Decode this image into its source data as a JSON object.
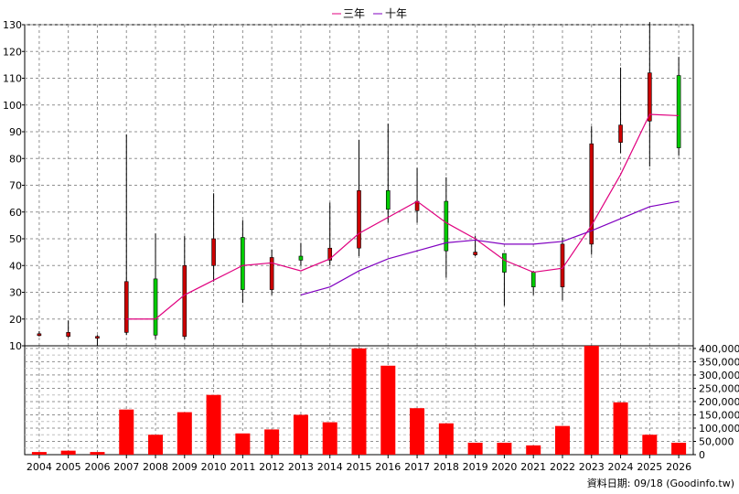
{
  "legend": [
    {
      "label": "三年",
      "color": "#e0007f"
    },
    {
      "label": "十年",
      "color": "#8000c0"
    }
  ],
  "source_text": "資料日期: 09/18  (Goodinfo.tw)",
  "chart_data": [
    {
      "type": "candlestick",
      "title": "",
      "categories": [
        "2004",
        "2005",
        "2006",
        "2007",
        "2008",
        "2009",
        "2010",
        "2011",
        "2012",
        "2013",
        "2014",
        "2015",
        "2016",
        "2017",
        "2018",
        "2019",
        "2020",
        "2021",
        "2022",
        "2023",
        "2024",
        "2025",
        "2026"
      ],
      "ylim": [
        10,
        130
      ],
      "yticks": [
        10,
        20,
        30,
        40,
        50,
        60,
        70,
        80,
        90,
        100,
        110,
        120,
        130
      ],
      "grid": true,
      "legend_position": "top-center",
      "up_color": "#00cc00",
      "down_color": "#cc0000",
      "ohlc": [
        {
          "open": 14.5,
          "high": 15.5,
          "low": 13.5,
          "close": 14.0
        },
        {
          "open": 15.0,
          "high": 19.5,
          "low": 13.0,
          "close": 13.5
        },
        {
          "open": 13.5,
          "high": 14.0,
          "low": 10.0,
          "close": 13.0
        },
        {
          "open": 34.0,
          "high": 89.0,
          "low": 14.0,
          "close": 15.0
        },
        {
          "open": 14.0,
          "high": 52.0,
          "low": 12.5,
          "close": 35.0
        },
        {
          "open": 40.0,
          "high": 51.0,
          "low": 12.5,
          "close": 13.5
        },
        {
          "open": 50.0,
          "high": 67.0,
          "low": 34.0,
          "close": 40.0
        },
        {
          "open": 31.0,
          "high": 57.0,
          "low": 26.0,
          "close": 50.5
        },
        {
          "open": 43.0,
          "high": 46.0,
          "low": 29.0,
          "close": 31.0
        },
        {
          "open": 42.0,
          "high": 48.5,
          "low": 40.0,
          "close": 43.5
        },
        {
          "open": 46.5,
          "high": 63.5,
          "low": 40.0,
          "close": 42.0
        },
        {
          "open": 68.0,
          "high": 87.0,
          "low": 43.5,
          "close": 46.5
        },
        {
          "open": 61.0,
          "high": 93.0,
          "low": 56.0,
          "close": 68.0
        },
        {
          "open": 64.0,
          "high": 76.5,
          "low": 56.0,
          "close": 60.5
        },
        {
          "open": 45.5,
          "high": 73.0,
          "low": 35.5,
          "close": 64.0
        },
        {
          "open": 45.0,
          "high": 51.0,
          "low": 43.5,
          "close": 44.0
        },
        {
          "open": 37.5,
          "high": 44.5,
          "low": 25.0,
          "close": 44.5
        },
        {
          "open": 32.0,
          "high": 38.0,
          "low": 29.0,
          "close": 37.5
        },
        {
          "open": 48.0,
          "high": 50.5,
          "low": 27.0,
          "close": 32.0
        },
        {
          "open": 85.5,
          "high": 92.0,
          "low": 44.0,
          "close": 48.0
        },
        {
          "open": 92.5,
          "high": 114.0,
          "low": 82.0,
          "close": 86.0
        },
        {
          "open": 112.0,
          "high": 131.0,
          "low": 77.0,
          "close": 94.0
        },
        {
          "open": 84.0,
          "high": 118.0,
          "low": 81.0,
          "close": 111.0
        }
      ],
      "series": [
        {
          "name": "三年",
          "color": "#e0007f",
          "values": [
            null,
            null,
            null,
            20.0,
            20.0,
            29.0,
            34.5,
            40.0,
            41.0,
            38.0,
            42.5,
            52.0,
            58.0,
            64.0,
            56.0,
            50.0,
            42.0,
            37.5,
            39.0,
            55.0,
            74.0,
            96.5,
            96.0
          ]
        },
        {
          "name": "十年",
          "color": "#8000c0",
          "values": [
            null,
            null,
            null,
            null,
            null,
            null,
            null,
            null,
            null,
            29.0,
            32.0,
            38.0,
            42.5,
            45.5,
            48.5,
            49.5,
            48.0,
            48.0,
            49.0,
            53.0,
            57.5,
            62.0,
            64.0
          ]
        }
      ]
    },
    {
      "type": "bar",
      "title": "",
      "categories": [
        "2004",
        "2005",
        "2006",
        "2007",
        "2008",
        "2009",
        "2010",
        "2011",
        "2012",
        "2013",
        "2014",
        "2015",
        "2016",
        "2017",
        "2018",
        "2019",
        "2020",
        "2021",
        "2022",
        "2023",
        "2024",
        "2025",
        "2026"
      ],
      "values": [
        10000,
        15000,
        10000,
        170000,
        75000,
        160000,
        225000,
        80000,
        95000,
        150000,
        122000,
        400000,
        335000,
        175000,
        118000,
        45000,
        45000,
        35000,
        108000,
        410000,
        197000,
        75000,
        45000
      ],
      "ylim": [
        0,
        410000
      ],
      "yticks": [
        0,
        50000,
        100000,
        150000,
        200000,
        250000,
        300000,
        350000,
        400000
      ],
      "ytick_labels": [
        "0",
        "50,000",
        "100,000",
        "150,000",
        "200,000",
        "250,000",
        "300,000",
        "350,000",
        "400,000"
      ],
      "color": "#ff0000",
      "grid": true
    }
  ]
}
